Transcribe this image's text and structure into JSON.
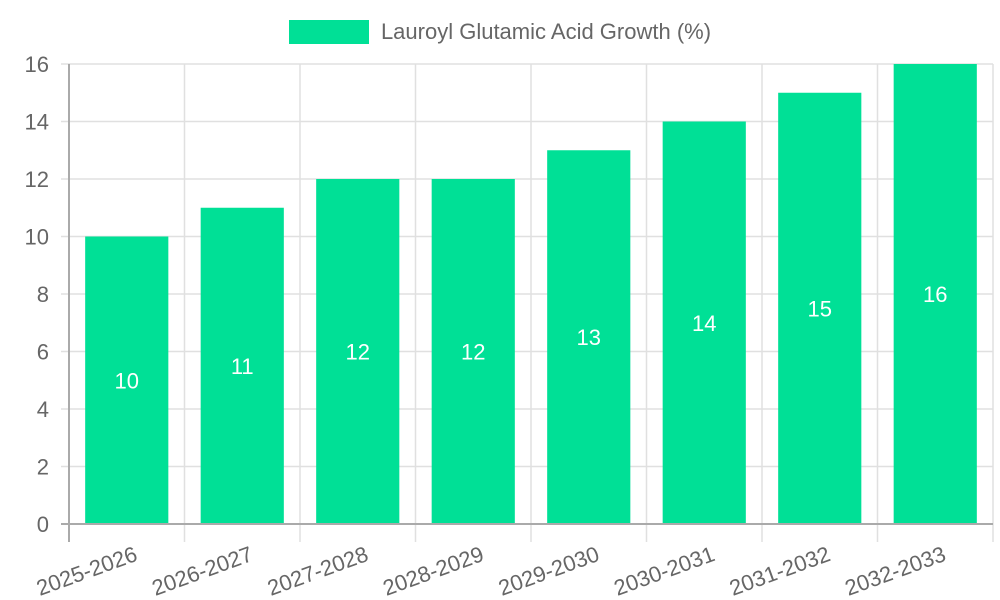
{
  "chart_data": {
    "type": "bar",
    "title": "",
    "legend": [
      {
        "label": "Lauroyl Glutamic Acid Growth (%)",
        "color": "#00e096"
      }
    ],
    "categories": [
      "2025-2026",
      "2026-2027",
      "2027-2028",
      "2028-2029",
      "2029-2030",
      "2030-2031",
      "2031-2032",
      "2032-2033"
    ],
    "series": [
      {
        "name": "Lauroyl Glutamic Acid Growth (%)",
        "values": [
          10,
          11,
          12,
          12,
          13,
          14,
          15,
          16
        ],
        "color": "#00e096"
      }
    ],
    "xlabel": "",
    "ylabel": "",
    "ylim": [
      0,
      16
    ],
    "yticks": [
      0,
      2,
      4,
      6,
      8,
      10,
      12,
      14,
      16
    ],
    "grid": true,
    "legend_position": "top",
    "data_labels": true
  },
  "colors": {
    "bar": "#00e096",
    "grid": "#e0e0e0",
    "axis": "#aaaaaa",
    "text": "#666666",
    "label": "#ffffff"
  }
}
